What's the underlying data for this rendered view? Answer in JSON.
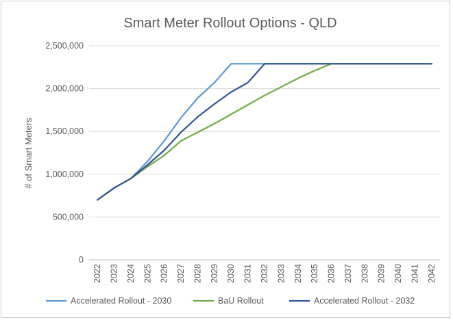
{
  "chart_data": {
    "type": "line",
    "title": "Smart Meter Rollout Options - QLD",
    "xlabel": "",
    "ylabel": "# of Smart Meters",
    "ylim": [
      0,
      2500000
    ],
    "y_ticks": [
      0,
      500000,
      1000000,
      1500000,
      2000000,
      2500000
    ],
    "y_tick_labels": [
      "0",
      "500,000",
      "1,000,000",
      "1,500,000",
      "2,000,000",
      "2,500,000"
    ],
    "categories": [
      "2022",
      "2023",
      "2024",
      "2025",
      "2026",
      "2027",
      "2028",
      "2029",
      "2030",
      "2031",
      "2032",
      "2033",
      "2034",
      "2035",
      "2036",
      "2037",
      "2038",
      "2039",
      "2040",
      "2041",
      "2042"
    ],
    "grid": "horizontal",
    "legend_position": "bottom",
    "series": [
      {
        "name": "Accelerated Rollout - 2030",
        "color": "#5b9bd5",
        "values": [
          700000,
          840000,
          950000,
          1150000,
          1390000,
          1660000,
          1890000,
          2070000,
          2290000,
          2290000,
          2290000,
          2290000,
          2290000,
          2290000,
          2290000,
          2290000,
          2290000,
          2290000,
          2290000,
          2290000,
          2290000
        ]
      },
      {
        "name": "BaU Rollout",
        "color": "#70ad47",
        "values": [
          700000,
          840000,
          950000,
          1090000,
          1220000,
          1390000,
          1490000,
          1590000,
          1700000,
          1810000,
          1920000,
          2020000,
          2120000,
          2210000,
          2290000,
          2290000,
          2290000,
          2290000,
          2290000,
          2290000,
          2290000
        ]
      },
      {
        "name": "Accelerated Rollout - 2032",
        "color": "#2f5597",
        "values": [
          700000,
          840000,
          950000,
          1110000,
          1280000,
          1490000,
          1670000,
          1820000,
          1960000,
          2070000,
          2290000,
          2290000,
          2290000,
          2290000,
          2290000,
          2290000,
          2290000,
          2290000,
          2290000,
          2290000,
          2290000
        ]
      }
    ]
  }
}
